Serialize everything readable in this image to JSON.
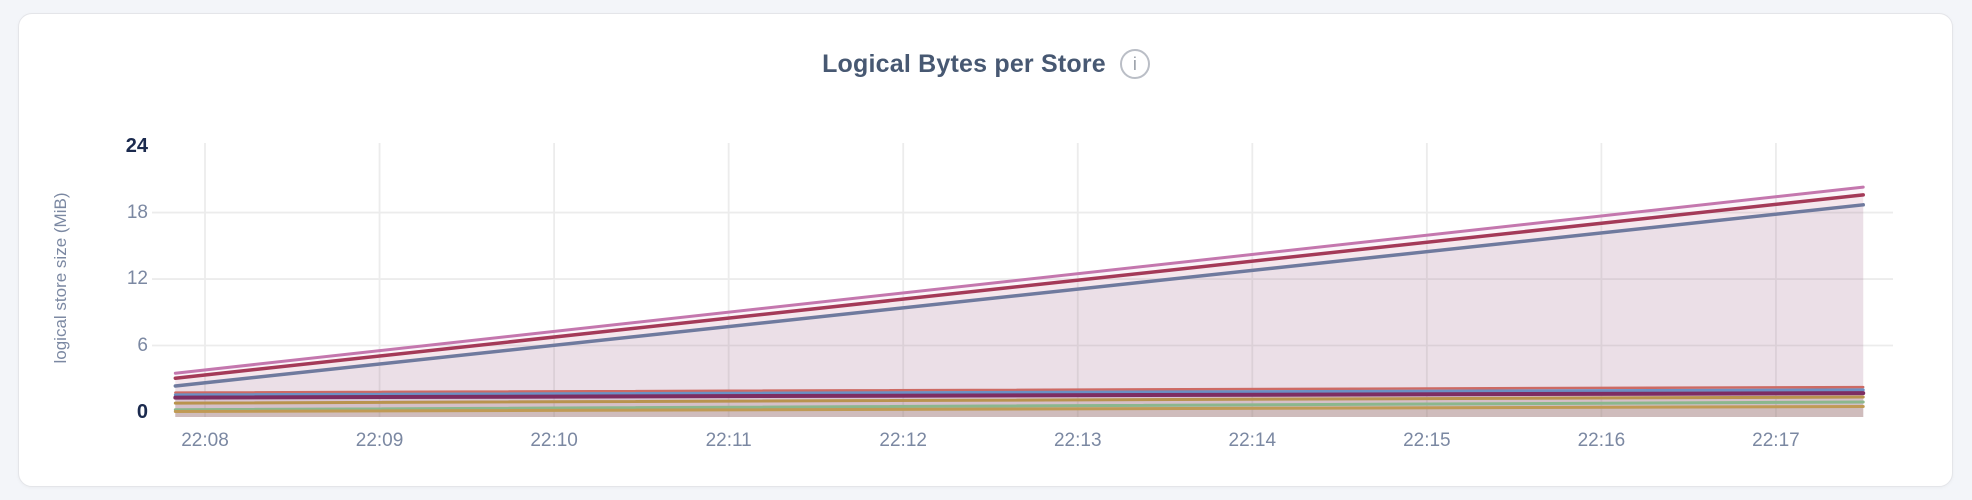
{
  "page": {
    "background": "#f3f5f9"
  },
  "card": {
    "background": "#ffffff",
    "border_color": "#e4e5e9"
  },
  "header": {
    "title": "Logical Bytes per Store",
    "title_color": "#475872",
    "info_icon": "i"
  },
  "chart_data": {
    "type": "area",
    "title": "Logical Bytes per Store",
    "xlabel": "",
    "ylabel": "logical store size (MiB)",
    "x_ticks": [
      "22:08",
      "22:09",
      "22:10",
      "22:11",
      "22:12",
      "22:13",
      "22:14",
      "22:15",
      "22:16",
      "22:17"
    ],
    "y_ticks": [
      0,
      6,
      12,
      18,
      24
    ],
    "ylim": [
      0,
      24
    ],
    "x_domain_minutes_from_2208": [
      -0.17,
      9.5
    ],
    "grid": true,
    "legend": "none",
    "grid_color": "#ececec",
    "axis_text_color": "#7b88a2",
    "axis_extreme_text_color": "#1b2a4e",
    "series": [
      {
        "id": "store-rising-pink",
        "color": "#c477ae",
        "width": 3,
        "fill_opacity": 0.07,
        "points": [
          [
            -0.17,
            3.5
          ],
          [
            9.5,
            20.3
          ]
        ]
      },
      {
        "id": "store-rising-crimson",
        "color": "#a43a58",
        "width": 3.5,
        "fill_opacity": 0.07,
        "points": [
          [
            -0.17,
            3.05
          ],
          [
            9.5,
            19.6
          ]
        ]
      },
      {
        "id": "store-rising-slate",
        "color": "#6f7a9e",
        "width": 3.5,
        "fill_opacity": 0.07,
        "points": [
          [
            -0.17,
            2.35
          ],
          [
            9.5,
            18.7
          ]
        ]
      },
      {
        "id": "store-flat-salmon",
        "color": "#cd6a64",
        "width": 2.5,
        "fill_opacity": 0.07,
        "points": [
          [
            -0.17,
            1.75
          ],
          [
            9.5,
            2.25
          ]
        ]
      },
      {
        "id": "store-flat-blue",
        "color": "#6b90c4",
        "width": 3,
        "fill_opacity": 0.07,
        "points": [
          [
            -0.17,
            1.55
          ],
          [
            9.5,
            2.0
          ]
        ]
      },
      {
        "id": "store-flat-magenta",
        "color": "#7d2d62",
        "width": 4,
        "fill_opacity": 0.07,
        "points": [
          [
            -0.17,
            1.3
          ],
          [
            9.5,
            1.7
          ]
        ]
      },
      {
        "id": "store-flat-tan",
        "color": "#b9934e",
        "width": 3,
        "fill_opacity": 0.07,
        "points": [
          [
            -0.17,
            0.8
          ],
          [
            9.5,
            1.35
          ]
        ]
      },
      {
        "id": "store-flat-green",
        "color": "#8bb78d",
        "width": 3,
        "fill_opacity": 0.07,
        "points": [
          [
            -0.17,
            0.2
          ],
          [
            9.5,
            0.9
          ]
        ]
      },
      {
        "id": "store-flat-gold",
        "color": "#c09a55",
        "width": 3,
        "fill_opacity": 0.07,
        "points": [
          [
            -0.17,
            0.05
          ],
          [
            9.5,
            0.5
          ]
        ]
      }
    ]
  }
}
